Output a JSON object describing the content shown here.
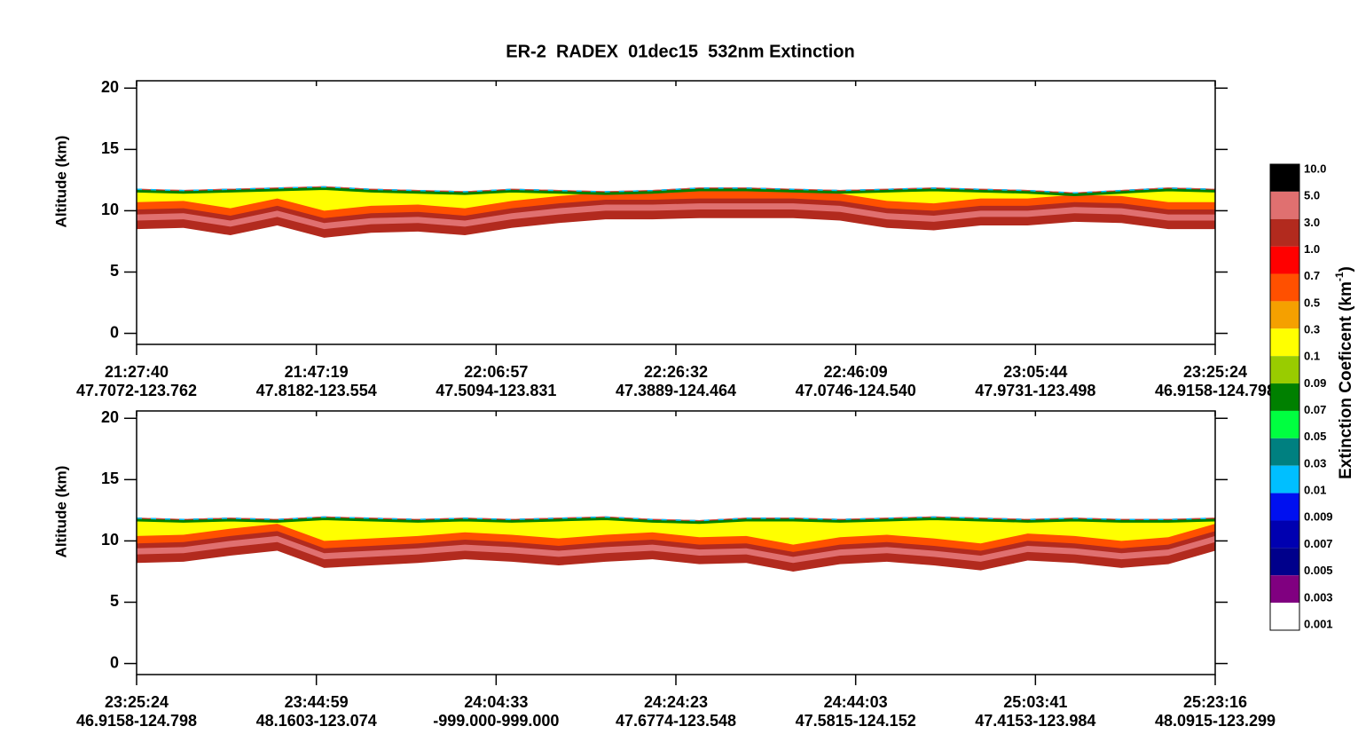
{
  "title": "ER-2  RADEX  01dec15  532nm Extinction",
  "chart_data": [
    {
      "type": "curtain",
      "ylabel": "Altitude (km)",
      "ylim": [
        -0.9,
        20.6
      ],
      "yticks": [
        0,
        5,
        10,
        15,
        20
      ],
      "x_labels": [
        {
          "time": "21:27:40",
          "location": "47.7072-123.762"
        },
        {
          "time": "21:47:19",
          "location": "47.8182-123.554"
        },
        {
          "time": "22:06:57",
          "location": "47.5094-123.831"
        },
        {
          "time": "22:26:32",
          "location": "47.3889-124.464"
        },
        {
          "time": "22:46:09",
          "location": "47.0746-124.540"
        },
        {
          "time": "23:05:44",
          "location": "47.9731-123.498"
        },
        {
          "time": "23:25:24",
          "location": "46.9158-124.798"
        }
      ],
      "cloud_top": [
        11.8,
        11.7,
        11.8,
        11.9,
        12.0,
        11.8,
        11.7,
        11.6,
        11.8,
        11.7,
        11.6,
        11.7,
        11.9,
        11.9,
        11.8,
        11.7,
        11.8,
        11.9,
        11.8,
        11.7,
        11.5,
        11.7,
        11.9,
        11.8
      ],
      "cloud_base": [
        8.5,
        8.6,
        8.0,
        8.8,
        7.8,
        8.2,
        8.3,
        8.0,
        8.6,
        9.0,
        9.3,
        9.3,
        9.4,
        9.4,
        9.4,
        9.2,
        8.6,
        8.4,
        8.8,
        8.8,
        9.1,
        9.0,
        8.5,
        8.5
      ]
    },
    {
      "type": "curtain",
      "ylabel": "Altitude (km)",
      "ylim": [
        -0.9,
        20.6
      ],
      "yticks": [
        0,
        5,
        10,
        15,
        20
      ],
      "x_labels": [
        {
          "time": "23:25:24",
          "location": "46.9158-124.798"
        },
        {
          "time": "23:44:59",
          "location": "48.1603-123.074"
        },
        {
          "time": "24:04:33",
          "location": "-999.000-999.000"
        },
        {
          "time": "24:24:23",
          "location": "47.6774-123.548"
        },
        {
          "time": "24:44:03",
          "location": "47.5815-124.152"
        },
        {
          "time": "25:03:41",
          "location": "47.4153-123.984"
        },
        {
          "time": "25:23:16",
          "location": "48.0915-123.299"
        }
      ],
      "cloud_top": [
        11.9,
        11.8,
        11.9,
        11.8,
        12.0,
        11.9,
        11.8,
        11.9,
        11.8,
        11.9,
        12.0,
        11.8,
        11.7,
        11.9,
        11.9,
        11.8,
        11.9,
        12.0,
        11.9,
        11.8,
        11.9,
        11.8,
        11.8,
        11.9
      ],
      "cloud_base": [
        8.2,
        8.3,
        8.8,
        9.2,
        7.8,
        8.0,
        8.2,
        8.5,
        8.3,
        8.0,
        8.3,
        8.5,
        8.1,
        8.2,
        7.5,
        8.1,
        8.3,
        8.0,
        7.6,
        8.4,
        8.2,
        7.8,
        8.1,
        9.2
      ]
    }
  ],
  "colorbar": {
    "title_parts": [
      "Extinction Coeficent (km",
      "-1",
      ")"
    ],
    "levels": [
      {
        "value": 10,
        "label": "10.0"
      },
      {
        "value": 5,
        "label": "5.0"
      },
      {
        "value": 3,
        "label": "3.0"
      },
      {
        "value": 1,
        "label": "1.0"
      },
      0.7,
      0.5,
      0.3,
      0.1,
      0.09,
      0.07,
      0.05,
      0.03,
      0.01,
      0.009,
      0.007,
      0.005,
      0.003,
      0.001
    ],
    "colors": [
      "#000000",
      "#e07070",
      "#b22a1e",
      "#ff0000",
      "#ff5000",
      "#f5a000",
      "#ffff00",
      "#99cc00",
      "#008000",
      "#00ff40",
      "#008080",
      "#00bfff",
      "#0010f0",
      "#0000b0",
      "#00008b",
      "#800080",
      "#ffffff"
    ]
  }
}
